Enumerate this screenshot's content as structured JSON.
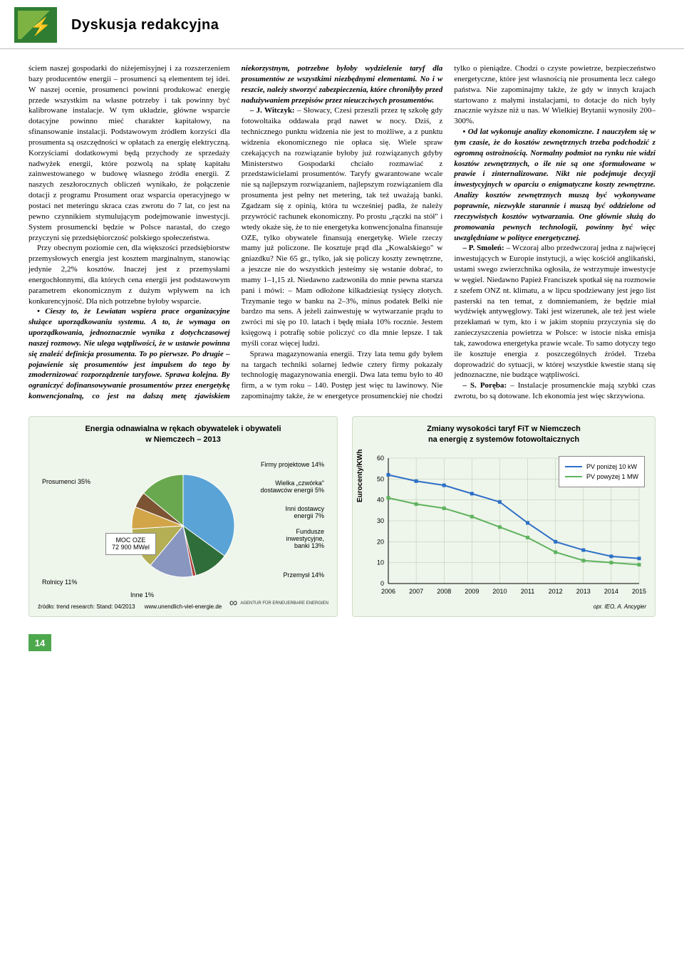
{
  "header": {
    "section_title": "Dyskusja redakcyjna"
  },
  "article": {
    "para1": "ściem naszej gospodarki do niżejemisyjnej i za rozszerzeniem bazy producentów energii – prosumenci są elementem tej idei. W naszej ocenie, prosumenci powinni produkować energię przede wszystkim na własne potrzeby i tak powinny być kalibrowane instalacje. W tym układzie, główne wsparcie dotacyjne powinno mieć charakter kapitałowy, na sfinansowanie instalacji. Podstawowym źródłem korzyści dla prosumenta są oszczędności w opłatach za energię elektryczną. Korzyściami dodatkowymi będą przychody ze sprzedaży nadwyżek energii, które pozwolą na spłatę kapitału zainwestowanego w budowę własnego źródła energii. Z naszych zeszłorocznych obliczeń wynikało, że połączenie dotacji z programu Prosument oraz wsparcia operacyjnego w postaci net meteringu skraca czas zwrotu do 7 lat, co jest na pewno czynnikiem stymulującym podejmowanie inwestycji. System prosumencki będzie w Polsce narastał, do czego przyczyni się przedsiębiorczość polskiego społeczeństwa.",
    "para2": "Przy obecnym poziomie cen, dla większości przedsiębiorstw przemysłowych energia jest kosztem marginalnym, stanowiąc jedynie 2,2% kosztów. Inaczej jest z przemysłami energochłonnymi, dla których cena energii jest podstawowym parametrem ekonomicznym z dużym wpływem na ich konkurencyjność. Dla nich potrzebne byłoby wsparcie.",
    "para3_bold": "• Cieszy to, że Lewiatan wspiera prace organizacyjne służące uporządkowaniu systemu. A to, że wymaga on uporządkowania, jednoznacznie wynika z dotychczasowej naszej rozmowy. Nie ulega wątpliwości, że w ustawie powinna się znaleźć definicja prosumenta. To po pierwsze. Po drugie – pojawienie się prosumentów jest impulsem do tego by zmodernizować rozporządzenie taryfowe. Sprawa kolejna. By ograniczyć dofinansowywanie prosumentów przez energetykę konwencjonalną, co jest na dalszą metę zjawiskiem niekorzystnym, potrzebne byłoby wydzielenie taryf dla prosumentów ze wszystkimi niezbędnymi elementami. No i w reszcie, należy stworzyć zabezpieczenia, które chroniłyby przed nadużywaniem przepisów przez nieuczciwych prosumentów.",
    "para4_speaker": "– J. Witczyk:",
    "para4": " – Słowacy, Czesi przeszli przez tę szkołę gdy fotowoltaika oddawała prąd nawet w nocy. Dziś, z technicznego punktu widzenia nie jest to możliwe, a z punktu widzenia ekonomicznego nie opłaca się. Wiele spraw czekających na rozwiązanie byłoby już rozwiązanych gdyby Ministerstwo Gospodarki chciało rozmawiać z przedstawicielami prosumentów. Taryfy gwarantowane wcale nie są najlepszym rozwiązaniem, najlepszym rozwiązaniem dla prosumenta jest pełny net metering, tak też uważają banki. Zgadzam się z opinią, która tu wcześniej padła, że należy przywrócić rachunek ekonomiczny. Po prostu „rączki na stół\" i wtedy okaże się, że to nie energetyka konwencjonalna finansuje OZE, tylko obywatele finansują energetykę. Wiele rzeczy mamy już policzone. Ile kosztuje prąd dla „Kowalskiego\" w gniazdku? Nie 65 gr., tylko, jak się policzy koszty zewnętrzne, a jeszcze nie do wszystkich jesteśmy się wstanie dobrać, to mamy 1–1,15 zł. Niedawno zadzwoniła do mnie pewna starsza pani i mówi: – Mam odłożone kilkadziesiąt tysięcy złotych. Trzymanie tego w banku na 2–3%, minus podatek Belki nie bardzo ma sens. A jeżeli zainwestuję w wytwarzanie prądu to zwróci mi się po 10. latach i będę miała 10% rocznie. Jestem księgową i potrafię sobie policzyć co dla mnie lepsze. I tak myśli coraz więcej ludzi.",
    "para5": "Sprawa magazynowania energii. Trzy lata temu gdy byłem na targach techniki solarnej ledwie cztery firmy pokazały technologię magazynowania energii. Dwa lata temu było to 40 firm, a w tym roku – 140. Postęp jest więc tu lawinowy. Nie zapominajmy także, że w energetyce prosumenckiej nie chodzi tylko o pieniądze. Chodzi o czyste powietrze, bezpieczeństwo energetyczne, które jest własnością nie prosumenta lecz całego państwa. Nie zapominajmy także, że gdy w innych krajach startowano z małymi instalacjami, to dotacje do nich były znacznie wyższe niż u nas. W Wielkiej Brytanii wynosiły 200–300%.",
    "para6_bold": "• Od lat wykonuje analizy ekonomiczne. I nauczyłem się w tym czasie, że do kosztów zewnętrznych trzeba podchodzić z ogromną ostrożnością. Normalny podmiot na rynku nie widzi kosztów zewnętrznych, o ile nie są one sformułowane w prawie i zinternalizowane. Nikt nie podejmuje decyzji inwestycyjnych w oparciu o enigmatyczne koszty zewnętrzne. Analizy kosztów zewnętrznych muszą być wykonywane poprawnie, niezwykle starannie i muszą być oddzielone od rzeczywistych kosztów wytwarzania. One głównie służą do promowania pewnych technologii, powinny być więc uwzględniane w polityce energetycznej.",
    "para7_speaker": "– P. Smoleń:",
    "para7": " – Wczoraj albo przedwczoraj jedna z najwięcej inwestujących w Europie instytucji, a więc kościół anglikański, ustami swego zwierzchnika ogłosiła, że wstrzymuje inwestycje w węgiel. Niedawno Papież Franciszek spotkał się na rozmowie z szefem ONZ nt. klimatu, a w lipcu spodziewany jest jego list pasterski na ten temat, z domniemaniem, że będzie miał wydźwięk antywęglowy. Taki jest wizerunek, ale też jest wiele przekłamań w tym, kto i w jakim stopniu przyczynia się do zanieczyszczenia powietrza w Polsce: w istocie niska emisja tak, zawodowa energetyka prawie wcale. To samo dotyczy tego ile kosztuje energia z poszczególnych źródeł. Trzeba doprowadzić do sytuacji, w której wszystkie kwestie staną się jednoznaczne, nie budzące wątpliwości.",
    "para8_speaker": "– S. Poręba:",
    "para8": " – Instalacje prosumenckie mają szybki czas zwrotu, bo są dotowane. Ich ekonomia jest więc skrzywiona."
  },
  "pie_chart": {
    "title": "Energia odnawialna w rękach obywatelek i obywateli\nw Niemczech – 2013",
    "center_label_line1": "MOC OZE",
    "center_label_line2": "72 900 MWel",
    "slices": [
      {
        "label": "Prosumenci 35%",
        "value": 35,
        "color": "#5aa3d6"
      },
      {
        "label": "Rolnicy 11%",
        "value": 11,
        "color": "#2f6e3a"
      },
      {
        "label": "Inne 1%",
        "value": 1,
        "color": "#ac3d35"
      },
      {
        "label": "Przemysł 14%",
        "value": 14,
        "color": "#8896c0"
      },
      {
        "label": "Fundusze inwestycyjne, banki 13%",
        "value": 13,
        "color": "#b4ae54"
      },
      {
        "label": "Inni dostawcy energii 7%",
        "value": 7,
        "color": "#d1a548"
      },
      {
        "label": "Wielka „czwórka\" dostawców energii 5%",
        "value": 5,
        "color": "#7c5434"
      },
      {
        "label": "Firmy projektowe 14%",
        "value": 14,
        "color": "#6aa84f"
      }
    ],
    "source": "źródło: trend research: Stand: 04/2013",
    "footer_url": "www.unendlich-viel-energie.de",
    "footer_agency": "AGENTUR FÜR ERNEUERBARE ENERGIEN"
  },
  "line_chart": {
    "title": "Zmiany wysokości taryf FiT w Niemczech\nna energię z systemów fotowoltaicznych",
    "ylabel": "Eurocenty/KWh",
    "ylim": [
      0,
      60
    ],
    "ytick_step": 10,
    "years": [
      2006,
      2007,
      2008,
      2009,
      2010,
      2011,
      2012,
      2013,
      2014,
      2015
    ],
    "series": [
      {
        "name": "PV poniżej 10 kW",
        "color": "#2d6fc8",
        "values": [
          52,
          49,
          47,
          43,
          39,
          29,
          20,
          16,
          13,
          12
        ]
      },
      {
        "name": "PV powyżej 1 MW",
        "color": "#5fb35f",
        "values": [
          41,
          38,
          36,
          32,
          27,
          22,
          15,
          11,
          10,
          9
        ]
      }
    ],
    "background_color": "#eef5ea",
    "grid_color": "#b8c8b0",
    "source": "opr. IEO, A. Ancygier"
  },
  "page_number": "14"
}
